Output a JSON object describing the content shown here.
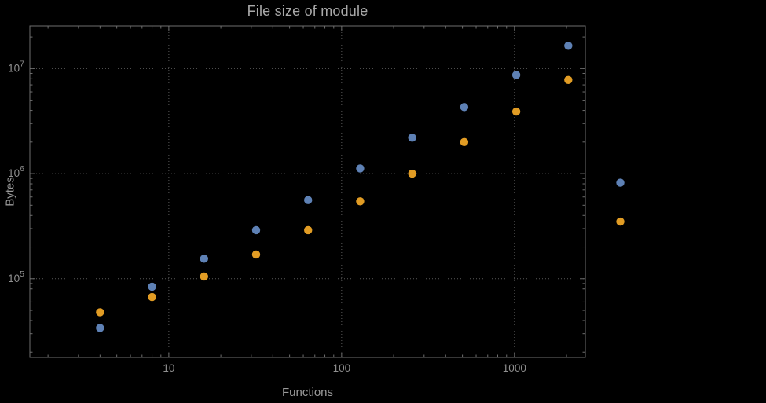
{
  "chart_data": {
    "type": "scatter",
    "title": "File size of module",
    "xlabel": "Functions",
    "ylabel": "Bytes",
    "xscale": "log",
    "yscale": "log",
    "xlim": [
      1.57,
      2570
    ],
    "ylim": [
      17800,
      25500000
    ],
    "grid": "dotted-at-major-ticks",
    "legend": "none",
    "frame": true,
    "x": [
      4,
      8,
      16,
      32,
      64,
      128,
      256,
      512,
      1024,
      2048,
      4096
    ],
    "series": [
      {
        "name": "series-1-blue",
        "color": "#5e81b5",
        "values": [
          34000,
          84000,
          155000,
          290000,
          560000,
          1120000,
          2200000,
          4300000,
          8700000,
          16500000,
          820000
        ]
      },
      {
        "name": "series-2-orange",
        "color": "#e19c24",
        "values": [
          48000,
          67000,
          105000,
          170000,
          290000,
          545000,
          1000000,
          2000000,
          3900000,
          7800000,
          350000
        ]
      }
    ],
    "x_axis": {
      "ticks": [
        {
          "value": 10,
          "label": "10"
        },
        {
          "value": 100,
          "label": "100"
        },
        {
          "value": 1000,
          "label": "1000"
        }
      ]
    },
    "y_axis": {
      "ticks": [
        {
          "value": 100000,
          "base": "10",
          "exponent": "5"
        },
        {
          "value": 1000000,
          "base": "10",
          "exponent": "6"
        },
        {
          "value": 10000000,
          "base": "10",
          "exponent": "7"
        }
      ]
    },
    "colors": {
      "background": "#000000",
      "frame": "#6e6e6e",
      "grid": "#5a5a5a",
      "title_text": "#a8a8a8",
      "tick_text": "#8f8f8f",
      "axis_label_text": "#9a9a9a"
    }
  }
}
